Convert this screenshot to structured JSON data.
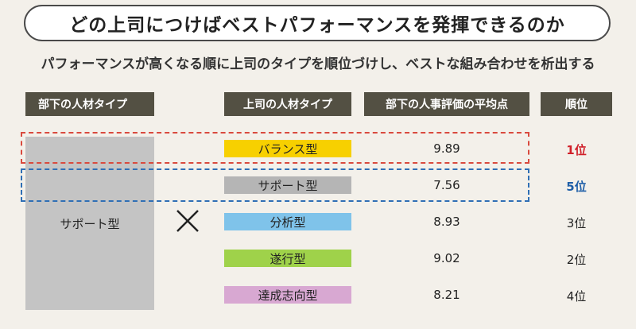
{
  "title": "どの上司につけばベストパフォーマンスを発揮できるのか",
  "subtitle": "パフォーマンスが高くなる順に上司のタイプを順位づけし、ベストな組み合わせを析出する",
  "headers": {
    "subordinate_type": "部下の人材タイプ",
    "boss_type": "上司の人材タイプ",
    "avg_score": "部下の人事評価の平均点",
    "rank": "順位"
  },
  "subordinate": {
    "label": "サポート型"
  },
  "cross_icon": "multiply-icon",
  "rows": [
    {
      "label": "バランス型",
      "score": "9.89",
      "rank": "1位",
      "color": "#f7d000",
      "rank_color": "#d0202a",
      "highlight": "#d94a3e"
    },
    {
      "label": "サポート型",
      "score": "7.56",
      "rank": "5位",
      "color": "#b5b5b5",
      "rank_color": "#1f5fa8",
      "highlight": "#2f6fb5"
    },
    {
      "label": "分析型",
      "score": "8.93",
      "rank": "3位",
      "color": "#7fc3ea",
      "rank_color": "#222222"
    },
    {
      "label": "遂行型",
      "score": "9.02",
      "rank": "2位",
      "color": "#9fd24a",
      "rank_color": "#222222"
    },
    {
      "label": "達成志向型",
      "score": "8.21",
      "rank": "4位",
      "color": "#d8a8d2",
      "rank_color": "#222222"
    }
  ]
}
